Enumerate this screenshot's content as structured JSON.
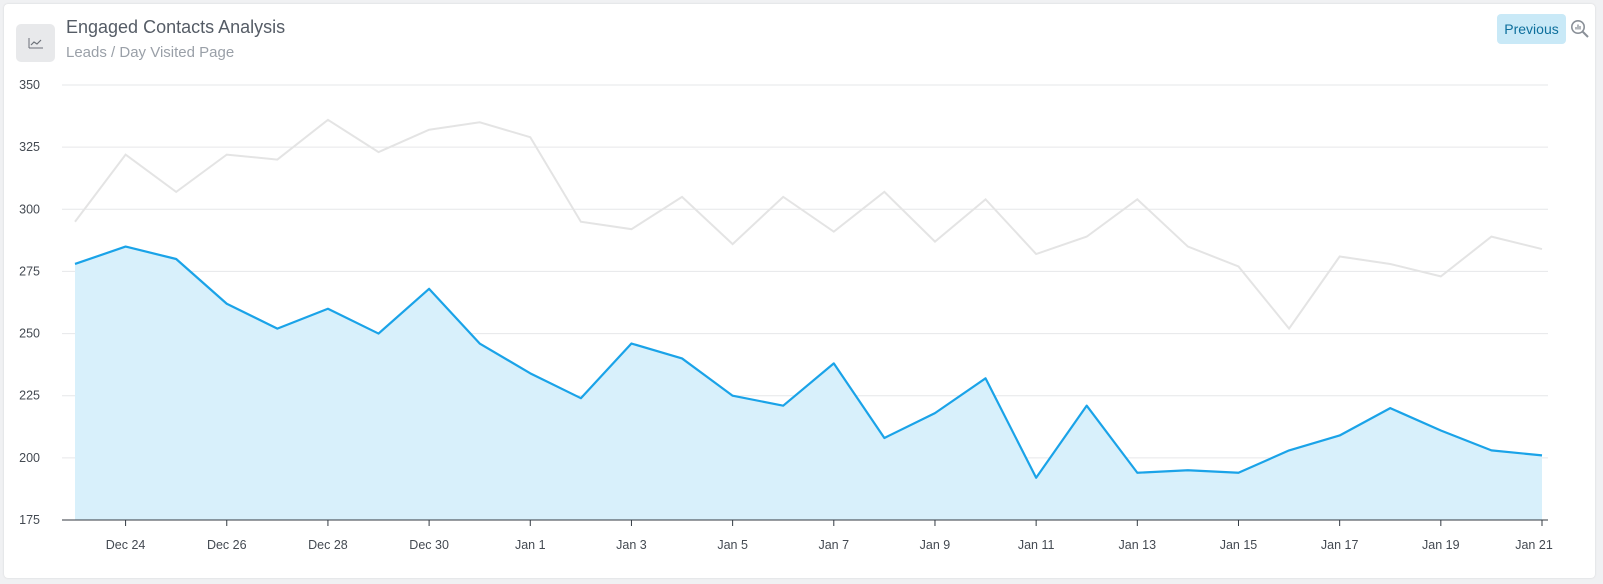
{
  "header": {
    "title": "Engaged Contacts Analysis",
    "subtitle": "Leads / Day Visited Page",
    "previous_label": "Previous"
  },
  "icons": {
    "chart": "line-chart-icon",
    "zoom": "zoom-icon"
  },
  "colors": {
    "current_line": "#1aa3e8",
    "current_fill": "#d8f0fb",
    "previous_line": "#e4e4e4"
  },
  "chart_data": {
    "type": "area",
    "title": "Engaged Contacts Analysis",
    "subtitle": "Leads / Day Visited Page",
    "ylim": [
      175,
      350
    ],
    "yticks": [
      175,
      200,
      225,
      250,
      275,
      300,
      325,
      350
    ],
    "grid": true,
    "x": [
      "Dec 23",
      "Dec 24",
      "Dec 25",
      "Dec 26",
      "Dec 27",
      "Dec 28",
      "Dec 29",
      "Dec 30",
      "Dec 31",
      "Jan 1",
      "Jan 2",
      "Jan 3",
      "Jan 4",
      "Jan 5",
      "Jan 6",
      "Jan 7",
      "Jan 8",
      "Jan 9",
      "Jan 10",
      "Jan 11",
      "Jan 12",
      "Jan 13",
      "Jan 14",
      "Jan 15",
      "Jan 16",
      "Jan 17",
      "Jan 18",
      "Jan 19",
      "Jan 20",
      "Jan 21"
    ],
    "xtick_labels": [
      "Dec 24",
      "Dec 26",
      "Dec 28",
      "Dec 30",
      "Jan 1",
      "Jan 3",
      "Jan 5",
      "Jan 7",
      "Jan 9",
      "Jan 11",
      "Jan 13",
      "Jan 15",
      "Jan 17",
      "Jan 19",
      "Jan 21"
    ],
    "series": [
      {
        "values": [
          278,
          285,
          280,
          262,
          252,
          260,
          250,
          268,
          246,
          234,
          224,
          246,
          240,
          225,
          221,
          238,
          208,
          218,
          232,
          192,
          221,
          194,
          195,
          194,
          203,
          209,
          220,
          211,
          203,
          201
        ]
      },
      {
        "values": [
          295,
          322,
          307,
          322,
          320,
          336,
          323,
          332,
          335,
          329,
          295,
          292,
          305,
          286,
          305,
          291,
          307,
          287,
          304,
          282,
          289,
          304,
          285,
          277,
          252,
          281,
          278,
          273,
          289,
          284
        ]
      }
    ]
  }
}
